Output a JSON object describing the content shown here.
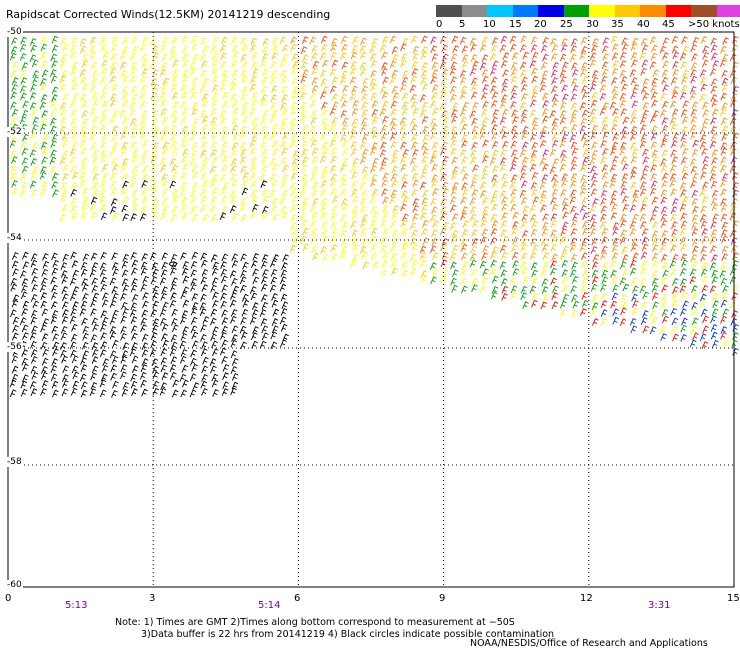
{
  "title": "Rapidscat Corrected Winds(12.5KM) 20141219 descending",
  "colorbar": {
    "colors": [
      "#505050",
      "#8c8c8c",
      "#00c8ff",
      "#0078ff",
      "#0000e6",
      "#00a000",
      "#ffff00",
      "#ffc800",
      "#ff8c00",
      "#ff0000",
      "#a05028",
      "#e040e0",
      "#9000d0"
    ],
    "labels": [
      "0",
      "5",
      "10",
      "15",
      "20",
      "25",
      "30",
      "35",
      "40",
      "45",
      ">50 knots"
    ]
  },
  "axes": {
    "x_ticks": [
      "0",
      "3",
      "6",
      "9",
      "12",
      "15"
    ],
    "y_ticks": [
      "-50",
      "-52",
      "-54",
      "-56",
      "-58",
      "-60"
    ],
    "grid": "dotted"
  },
  "times": [
    "5:13",
    "5:14",
    "3:31"
  ],
  "notes": {
    "line1": "Note: 1) Times are GMT 2)Times along bottom correspond to measurement at −50S",
    "line2": "3)Data buffer is 22 hrs from 20141219 4) Black circles indicate possible contamination"
  },
  "credit": "NOAA/NESDIS/Office of Research and Applications"
}
